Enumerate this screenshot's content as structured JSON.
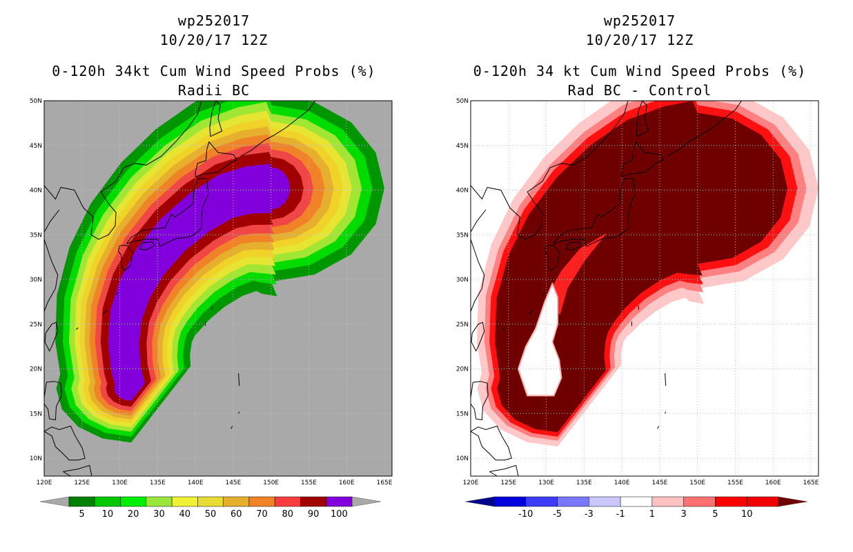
{
  "chart_data": [
    {
      "type": "heatmap",
      "storm_id": "wp252017",
      "datetime": "10/20/17 12Z",
      "title": "0-120h 34kt Cum Wind Speed Probs (%)",
      "subtitle": "Radii BC",
      "background_color": "#a9a9a9",
      "x_ticks": [
        "120E",
        "125E",
        "130E",
        "135E",
        "140E",
        "145E",
        "150E",
        "155E",
        "160E",
        "165E"
      ],
      "y_ticks": [
        "10N",
        "15N",
        "20N",
        "25N",
        "30N",
        "35N",
        "40N",
        "45N",
        "50N"
      ],
      "xlim": [
        120,
        166
      ],
      "ylim": [
        8,
        50
      ],
      "grid": true,
      "colorbar": {
        "labels": [
          "5",
          "10",
          "20",
          "30",
          "40",
          "50",
          "60",
          "70",
          "80",
          "90",
          "100"
        ],
        "colors": [
          "#007f00",
          "#00c800",
          "#00ee00",
          "#9ae63a",
          "#f0f035",
          "#e6dc32",
          "#e6af2d",
          "#f08228",
          "#fa3c3c",
          "#a00000",
          "#8200dc"
        ],
        "end_colors": [
          "#a9a9a9",
          "#a9a9a9"
        ]
      },
      "contour_levels": [
        5,
        10,
        20,
        30,
        40,
        50,
        60,
        70,
        80,
        90
      ],
      "contour_colors": [
        "#009600",
        "#00dc00",
        "#a0e632",
        "#e6e632",
        "#f0d228",
        "#e6af2d",
        "#f08228",
        "#f04646",
        "#a00000",
        "#8200dc"
      ]
    },
    {
      "type": "heatmap",
      "storm_id": "wp252017",
      "datetime": "10/20/17 12Z",
      "title": "0-120h 34 kt Cum Wind Speed Probs (%)",
      "subtitle": "Rad BC - Control",
      "background_color": "#ffffff",
      "x_ticks": [
        "120E",
        "125E",
        "130E",
        "135E",
        "140E",
        "145E",
        "150E",
        "155E",
        "160E",
        "165E"
      ],
      "y_ticks": [
        "10N",
        "15N",
        "20N",
        "25N",
        "30N",
        "35N",
        "40N",
        "45N",
        "50N"
      ],
      "xlim": [
        120,
        166
      ],
      "ylim": [
        8,
        50
      ],
      "grid": true,
      "colorbar": {
        "labels": [
          "-10",
          "-5",
          "-3",
          "-1",
          "1",
          "3",
          "5",
          "10"
        ],
        "colors": [
          "#0000dc",
          "#3c3cfa",
          "#7878ff",
          "#c8c8ff",
          "#ffffff",
          "#ffc0c0",
          "#ff7070",
          "#ff0000",
          "#f00000"
        ],
        "end_colors": [
          "#00008c",
          "#6e0000"
        ]
      },
      "contour_levels": [
        1,
        3,
        5,
        10
      ],
      "contour_colors": [
        "#ffc8c8",
        "#ff8080",
        "#ff1010",
        "#6e0000"
      ]
    }
  ]
}
